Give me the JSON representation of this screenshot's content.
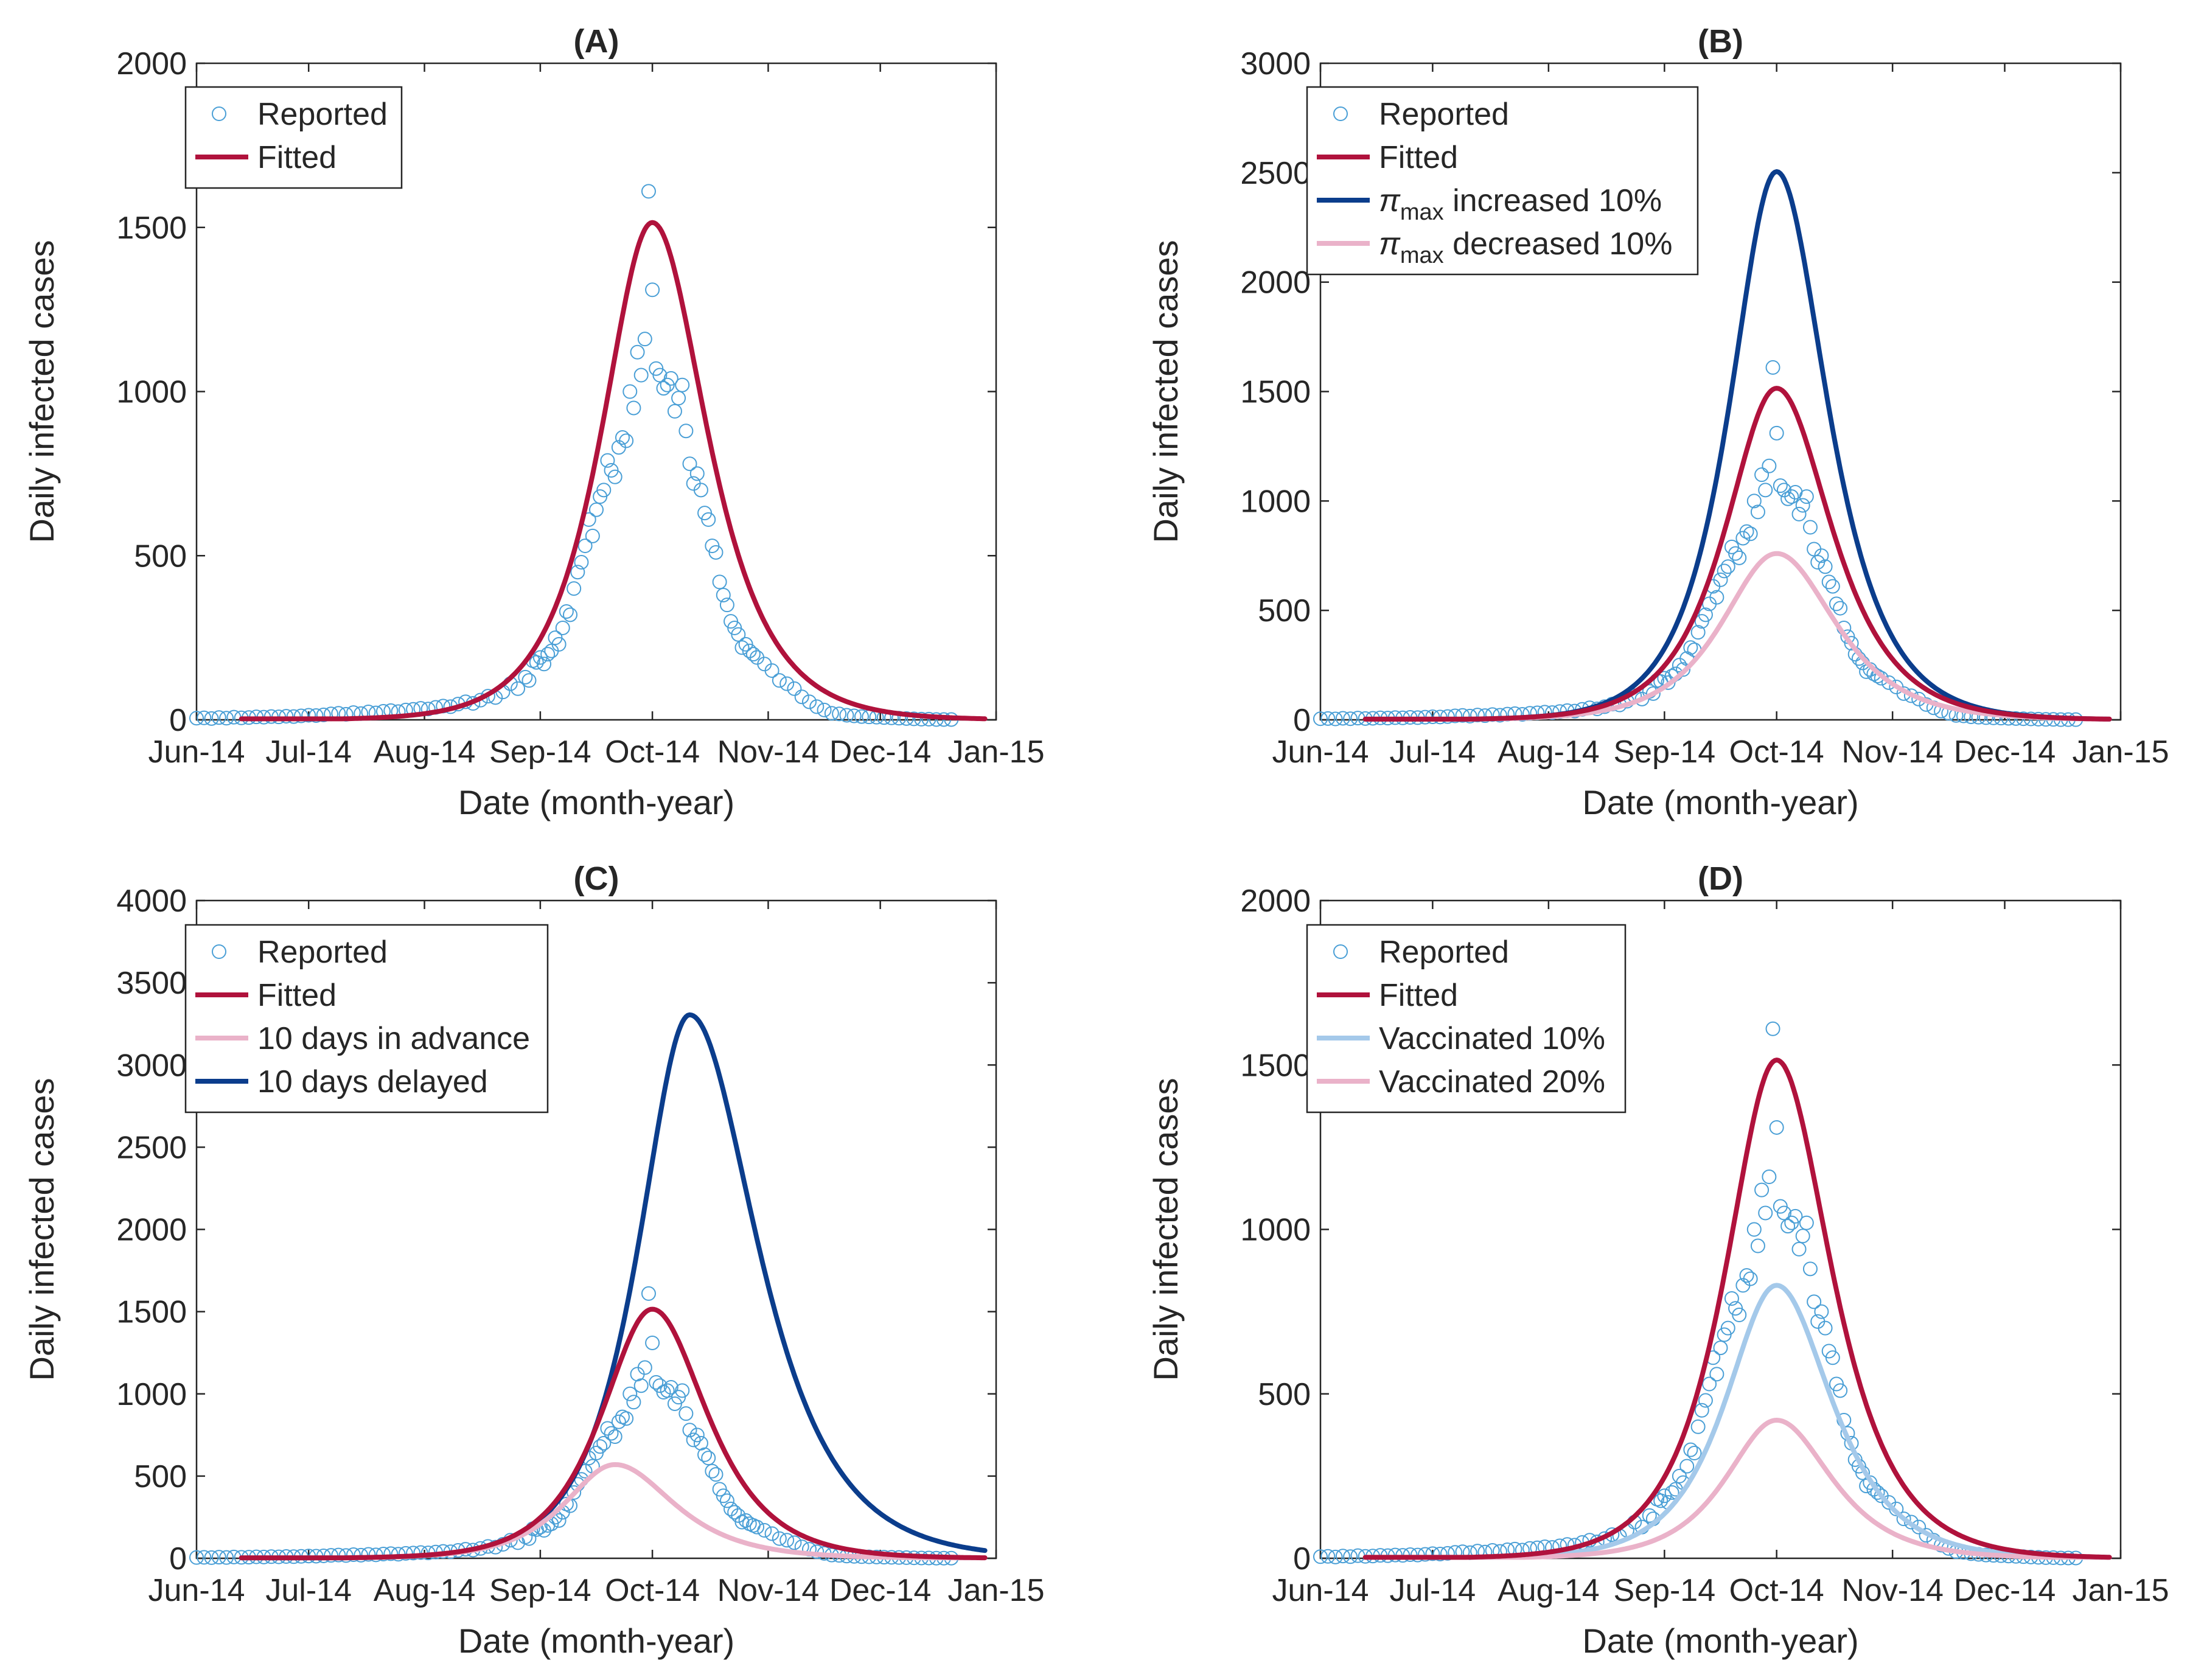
{
  "colors": {
    "reported": "#4a9fd6",
    "fitted": "#b0123c",
    "dark_blue": "#0b3d8c",
    "light_pink": "#eab2c9",
    "light_blue": "#a4c9ea",
    "axis": "#262626"
  },
  "chart_data": [
    {
      "id": "A",
      "type": "line",
      "title": "(A)",
      "xlabel": "Date (month-year)",
      "ylabel": "Daily infected cases",
      "xlim": [
        0,
        214
      ],
      "ylim": [
        0,
        2000
      ],
      "yticks": [
        0,
        500,
        1000,
        1500,
        2000
      ],
      "xticks": [
        0,
        30,
        61,
        92,
        122,
        153,
        183,
        214
      ],
      "xtick_labels": [
        "Jun-14",
        "Jul-14",
        "Aug-14",
        "Sep-14",
        "Oct-14",
        "Nov-14",
        "Dec-14",
        "Jan-15"
      ],
      "legend": [
        {
          "label": "Reported",
          "style": "marker",
          "color": "reported"
        },
        {
          "label": "Fitted",
          "style": "line",
          "color": "fitted"
        }
      ],
      "series": [
        {
          "name": "Fitted",
          "color": "fitted",
          "start": 12,
          "end": 211,
          "peak_day": 122,
          "peak": 1515,
          "rise": 12,
          "fall": 13
        }
      ]
    },
    {
      "id": "B",
      "type": "line",
      "title": "(B)",
      "xlabel": "Date (month-year)",
      "ylabel": "Daily infected cases",
      "xlim": [
        0,
        214
      ],
      "ylim": [
        0,
        3000
      ],
      "yticks": [
        0,
        500,
        1000,
        1500,
        2000,
        2500,
        3000
      ],
      "xticks": [
        0,
        30,
        61,
        92,
        122,
        153,
        183,
        214
      ],
      "xtick_labels": [
        "Jun-14",
        "Jul-14",
        "Aug-14",
        "Sep-14",
        "Oct-14",
        "Nov-14",
        "Dec-14",
        "Jan-15"
      ],
      "legend": [
        {
          "label": "Reported",
          "style": "marker",
          "color": "reported"
        },
        {
          "label": "Fitted",
          "style": "line",
          "color": "fitted"
        },
        {
          "label": "π",
          "sub": "max",
          "rest": " increased 10%",
          "style": "line",
          "color": "dark_blue"
        },
        {
          "label": "π",
          "sub": "max",
          "rest": " decreased 10%",
          "style": "line",
          "color": "light_pink"
        }
      ],
      "series": [
        {
          "name": "π_max increased 10%",
          "color": "dark_blue",
          "start": 12,
          "end": 211,
          "peak_day": 122,
          "peak": 2505,
          "rise": 11,
          "fall": 12
        },
        {
          "name": "π_max decreased 10%",
          "color": "light_pink",
          "start": 12,
          "end": 211,
          "peak_day": 122,
          "peak": 760,
          "rise": 13,
          "fall": 14
        },
        {
          "name": "Fitted",
          "color": "fitted",
          "start": 12,
          "end": 211,
          "peak_day": 122,
          "peak": 1515,
          "rise": 12,
          "fall": 13
        }
      ]
    },
    {
      "id": "C",
      "type": "line",
      "title": "(C)",
      "xlabel": "Date (month-year)",
      "ylabel": "Daily infected cases",
      "xlim": [
        0,
        214
      ],
      "ylim": [
        0,
        4000
      ],
      "yticks": [
        0,
        500,
        1000,
        1500,
        2000,
        2500,
        3000,
        3500,
        4000
      ],
      "xticks": [
        0,
        30,
        61,
        92,
        122,
        153,
        183,
        214
      ],
      "xtick_labels": [
        "Jun-14",
        "Jul-14",
        "Aug-14",
        "Sep-14",
        "Oct-14",
        "Nov-14",
        "Dec-14",
        "Jan-15"
      ],
      "legend": [
        {
          "label": "Reported",
          "style": "marker",
          "color": "reported"
        },
        {
          "label": "Fitted",
          "style": "line",
          "color": "fitted"
        },
        {
          "label": "10 days in advance",
          "style": "line",
          "color": "light_pink"
        },
        {
          "label": "10 days delayed",
          "style": "line",
          "color": "dark_blue"
        }
      ],
      "series": [
        {
          "name": "10 days delayed",
          "color": "dark_blue",
          "start": 12,
          "end": 211,
          "peak_day": 132,
          "peak": 3305,
          "rise": 12,
          "fall": 16
        },
        {
          "name": "10 days in advance",
          "color": "light_pink",
          "start": 12,
          "end": 211,
          "peak_day": 112,
          "peak": 570,
          "rise": 12,
          "fall": 14
        },
        {
          "name": "Fitted",
          "color": "fitted",
          "start": 12,
          "end": 211,
          "peak_day": 122,
          "peak": 1515,
          "rise": 12,
          "fall": 13
        }
      ]
    },
    {
      "id": "D",
      "type": "line",
      "title": "(D)",
      "xlabel": "Date (month-year)",
      "ylabel": "Daily infected cases",
      "xlim": [
        0,
        214
      ],
      "ylim": [
        0,
        2000
      ],
      "yticks": [
        0,
        500,
        1000,
        1500,
        2000
      ],
      "xticks": [
        0,
        30,
        61,
        92,
        122,
        153,
        183,
        214
      ],
      "xtick_labels": [
        "Jun-14",
        "Jul-14",
        "Aug-14",
        "Sep-14",
        "Oct-14",
        "Nov-14",
        "Dec-14",
        "Jan-15"
      ],
      "legend": [
        {
          "label": "Reported",
          "style": "marker",
          "color": "reported"
        },
        {
          "label": "Fitted",
          "style": "line",
          "color": "fitted"
        },
        {
          "label": "Vaccinated 10%",
          "style": "line",
          "color": "light_blue"
        },
        {
          "label": "Vaccinated 20%",
          "style": "line",
          "color": "light_pink"
        }
      ],
      "series": [
        {
          "name": "Vaccinated 10%",
          "color": "light_blue",
          "start": 12,
          "end": 211,
          "peak_day": 122,
          "peak": 830,
          "rise": 12,
          "fall": 13
        },
        {
          "name": "Vaccinated 20%",
          "color": "light_pink",
          "start": 12,
          "end": 211,
          "peak_day": 122,
          "peak": 420,
          "rise": 12,
          "fall": 13
        },
        {
          "name": "Fitted",
          "color": "fitted",
          "start": 12,
          "end": 211,
          "peak_day": 122,
          "peak": 1515,
          "rise": 12,
          "fall": 13
        }
      ]
    }
  ],
  "reported_data": {
    "name": "Reported",
    "x": [
      0,
      2,
      4,
      6,
      8,
      10,
      12,
      14,
      16,
      18,
      20,
      22,
      24,
      26,
      28,
      30,
      32,
      34,
      36,
      38,
      40,
      42,
      44,
      46,
      48,
      50,
      52,
      54,
      56,
      58,
      60,
      62,
      64,
      66,
      68,
      70,
      72,
      74,
      76,
      78,
      80,
      82,
      84,
      86,
      88,
      89,
      90,
      91,
      92,
      93,
      94,
      95,
      96,
      97,
      98,
      99,
      100,
      101,
      102,
      103,
      104,
      105,
      106,
      107,
      108,
      109,
      110,
      111,
      112,
      113,
      114,
      115,
      116,
      117,
      118,
      119,
      120,
      121,
      122,
      123,
      124,
      125,
      126,
      127,
      128,
      129,
      130,
      131,
      132,
      133,
      134,
      135,
      136,
      137,
      138,
      139,
      140,
      141,
      142,
      143,
      144,
      145,
      146,
      147,
      148,
      149,
      150,
      152,
      154,
      156,
      158,
      160,
      162,
      164,
      166,
      168,
      170,
      172,
      174,
      176,
      178,
      180,
      182,
      184,
      186,
      188,
      190,
      192,
      194,
      196,
      198,
      200,
      202
    ],
    "y": [
      5,
      6,
      4,
      7,
      5,
      8,
      6,
      7,
      9,
      8,
      10,
      9,
      11,
      10,
      12,
      14,
      13,
      15,
      18,
      20,
      17,
      22,
      19,
      24,
      21,
      26,
      28,
      25,
      30,
      32,
      35,
      33,
      38,
      42,
      40,
      48,
      55,
      50,
      60,
      72,
      68,
      85,
      110,
      95,
      130,
      120,
      180,
      175,
      190,
      170,
      200,
      210,
      250,
      230,
      280,
      330,
      320,
      400,
      450,
      480,
      530,
      610,
      560,
      640,
      680,
      700,
      790,
      760,
      740,
      830,
      860,
      850,
      1000,
      950,
      1120,
      1050,
      1160,
      1610,
      1310,
      1070,
      1050,
      1010,
      1020,
      1040,
      940,
      980,
      1020,
      880,
      780,
      720,
      750,
      700,
      630,
      610,
      530,
      510,
      420,
      380,
      350,
      300,
      280,
      260,
      220,
      230,
      210,
      200,
      190,
      170,
      150,
      120,
      110,
      95,
      70,
      55,
      40,
      30,
      20,
      18,
      14,
      12,
      10,
      9,
      8,
      7,
      6,
      5,
      4,
      3,
      2,
      2,
      1,
      1,
      1
    ]
  }
}
